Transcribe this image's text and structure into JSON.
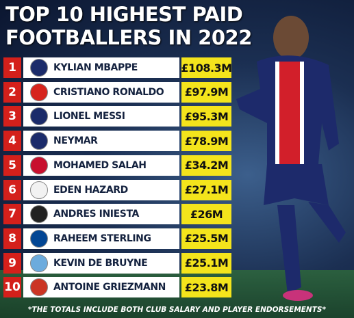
{
  "header": {
    "title_line1": "TOP 10 HIGHEST PAID",
    "title_line2": "FOOTBALLERS IN 2022"
  },
  "table": {
    "rows": [
      {
        "rank": 1,
        "name": "KYLIAN MBAPPE",
        "earnings": "£108.3M"
      },
      {
        "rank": 2,
        "name": "CRISTIANO RONALDO",
        "earnings": "£97.9M"
      },
      {
        "rank": 3,
        "name": "LIONEL MESSI",
        "earnings": "£95.3M"
      },
      {
        "rank": 4,
        "name": "NEYMAR",
        "earnings": "£78.9M"
      },
      {
        "rank": 5,
        "name": "MOHAMED SALAH",
        "earnings": "£34.2M"
      },
      {
        "rank": 6,
        "name": "EDEN HAZARD",
        "earnings": "£27.1M"
      },
      {
        "rank": 7,
        "name": "ANDRES INIESTA",
        "earnings": "£26M"
      },
      {
        "rank": 8,
        "name": "RAHEEM STERLING",
        "earnings": "£25.5M"
      },
      {
        "rank": 9,
        "name": "KEVIN DE BRUYNE",
        "earnings": "£25.1M"
      },
      {
        "rank": 10,
        "name": "ANTOINE GRIEZMANN",
        "earnings": "£23.8M"
      }
    ]
  },
  "footnote": "*THE TOTALS INCLUDE BOTH CLUB SALARY AND PLAYER ENDORSEMENTS*"
}
